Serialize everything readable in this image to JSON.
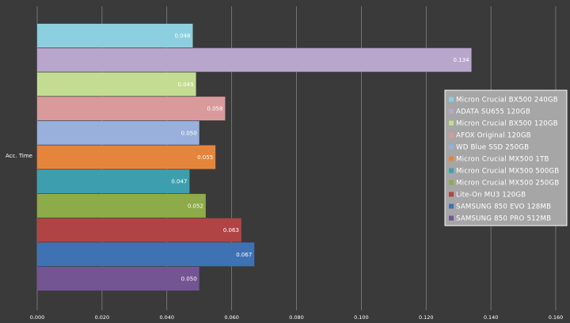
{
  "chart_data": {
    "type": "bar",
    "orientation": "horizontal",
    "categories": [
      "Acc. Time"
    ],
    "xlim": [
      0,
      0.16
    ],
    "x_ticks": [
      "0.000",
      "0.020",
      "0.040",
      "0.060",
      "0.080",
      "0.100",
      "0.120",
      "0.140",
      "0.160"
    ],
    "grid": "vertical",
    "legend_placement": "right",
    "series": [
      {
        "name": "Micron Crucial BX500 240GB",
        "value": 0.048,
        "label": "0.048",
        "color": "#8ccfe0"
      },
      {
        "name": "ADATA SU655 120GB",
        "value": 0.134,
        "label": "0.134",
        "color": "#b9a6cc"
      },
      {
        "name": "Micron Crucial BX500 120GB",
        "value": 0.049,
        "label": "0.049",
        "color": "#c3dc92"
      },
      {
        "name": "AFOX Original 120GB",
        "value": 0.058,
        "label": "0.058",
        "color": "#d99a9c"
      },
      {
        "name": "WD Blue SSD 250GB",
        "value": 0.05,
        "label": "0.050",
        "color": "#98b0db"
      },
      {
        "name": "Micron Crucial MX500 1TB",
        "value": 0.055,
        "label": "0.055",
        "color": "#e5853c"
      },
      {
        "name": "Micron Crucial MX500 500GB",
        "value": 0.047,
        "label": "0.047",
        "color": "#3d9fae"
      },
      {
        "name": "Micron Crucial MX500 250GB",
        "value": 0.052,
        "label": "0.052",
        "color": "#8dab48"
      },
      {
        "name": "Lite-On MU3 120GB",
        "value": 0.063,
        "label": "0.063",
        "color": "#b04445"
      },
      {
        "name": "SAMSUNG 850 EVO 128MB",
        "value": 0.067,
        "label": "0.067",
        "color": "#3f72b3"
      },
      {
        "name": "SAMSUNG 850 PRO 512MB",
        "value": 0.05,
        "label": "0.050",
        "color": "#725592"
      }
    ],
    "colors": {
      "background": "#3a3a3a",
      "grid": "#8a8a8a",
      "legend_background": "#a6a6a6",
      "legend_border": "#ffffff",
      "text": "#ffffff"
    }
  }
}
